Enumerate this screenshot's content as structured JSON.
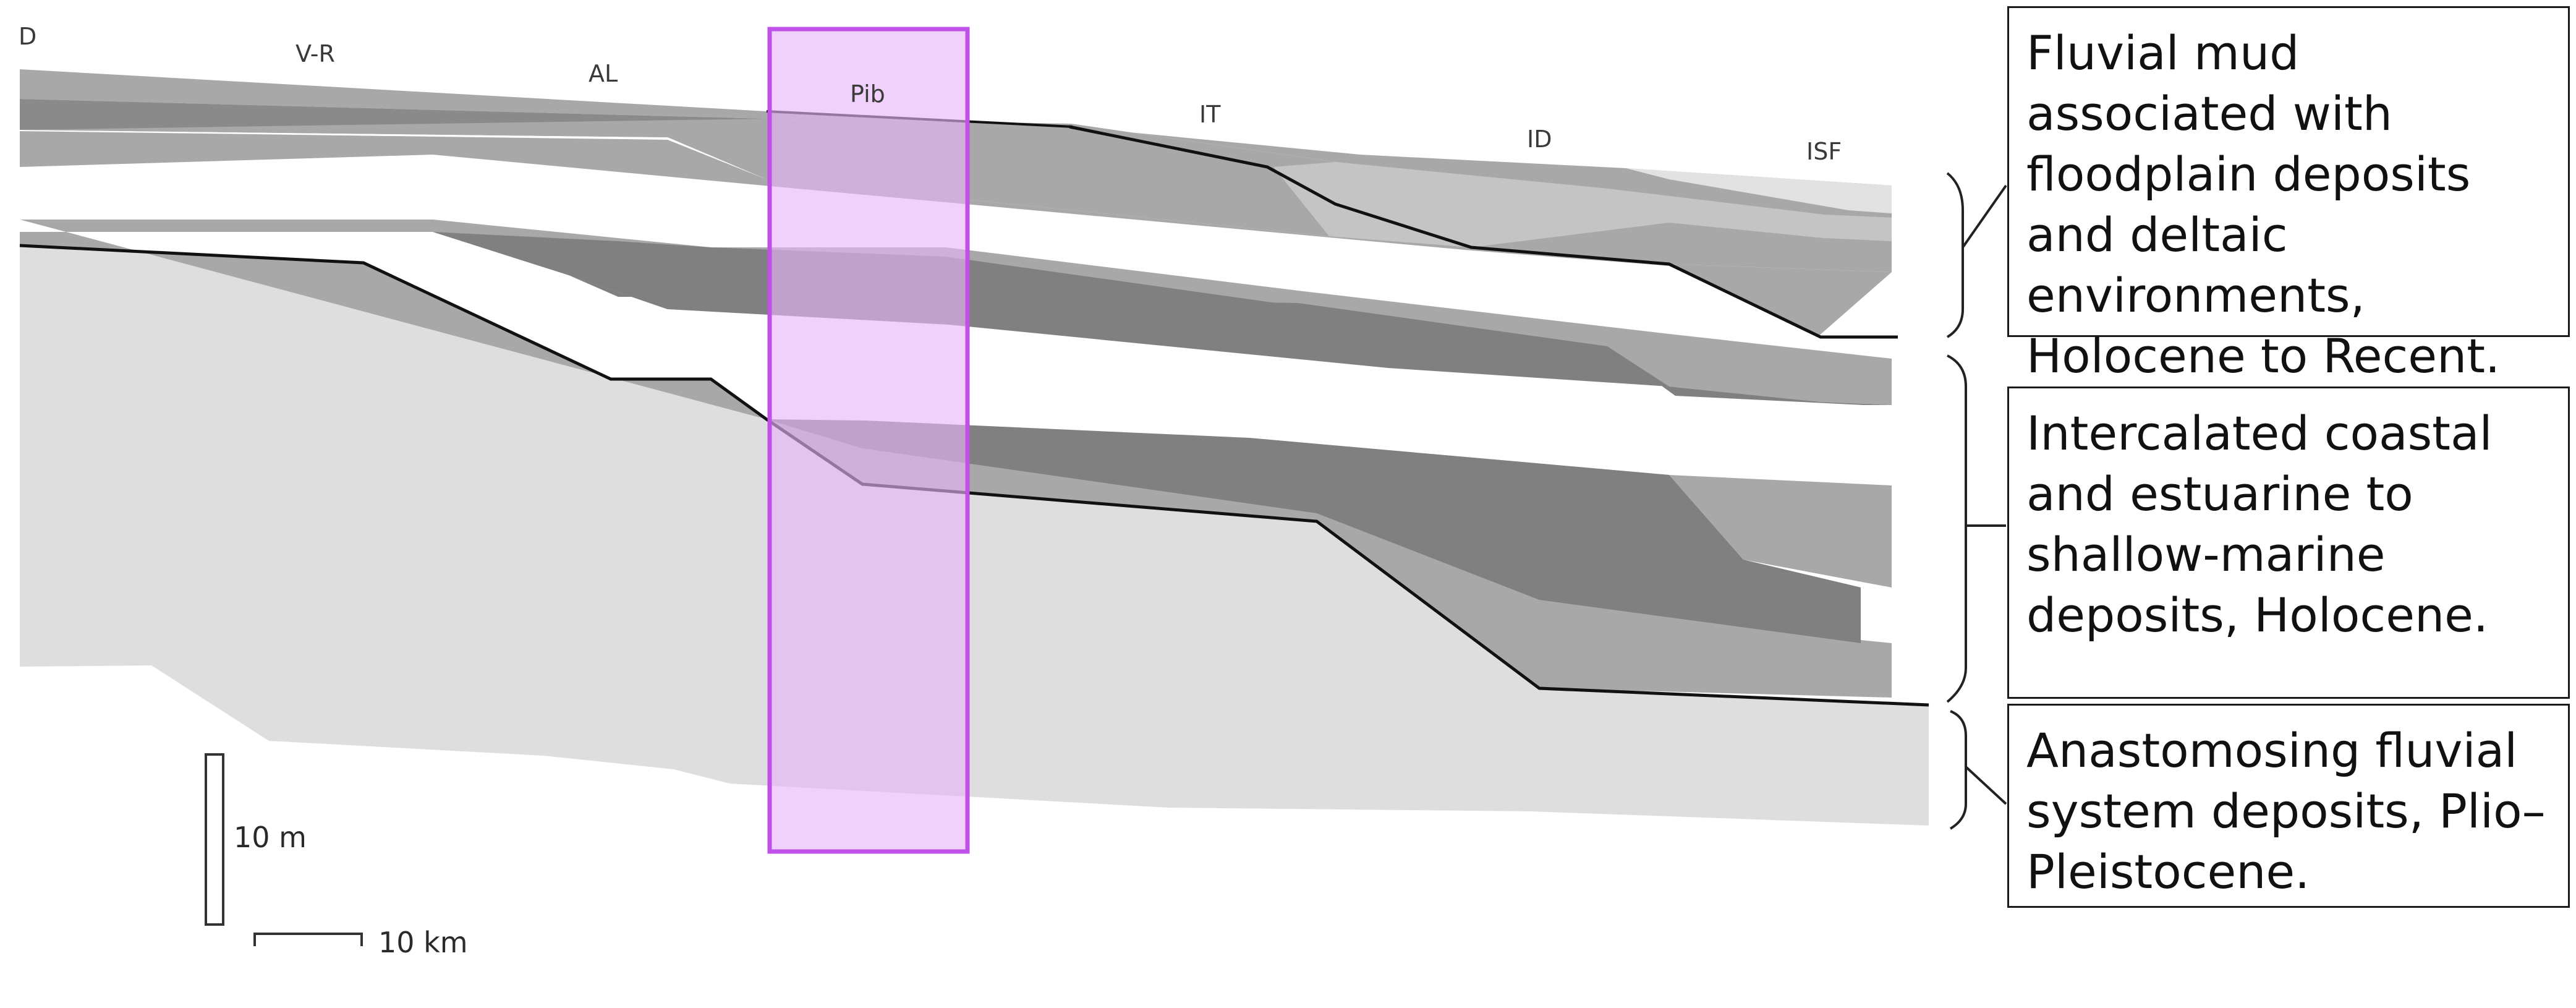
{
  "sites": [
    "D",
    "V-R",
    "AL",
    "Pib",
    "IT",
    "ID",
    "ISF"
  ],
  "scale": {
    "vertical": "10 m",
    "horizontal": "10 km"
  },
  "legend": [
    {
      "text": "Fluvial mud associated with floodplain deposits and deltaic environments, Holocene to Recent."
    },
    {
      "text": "Intercalated coastal and estuarine to shallow-marine deposits, Holocene."
    },
    {
      "text": "Anastomosing fluvial system deposits, Plio–Pleistocene."
    }
  ],
  "colors": {
    "highlight": "#c050e8",
    "highlight_fill": "#e6b4f8",
    "light_unit": "#dedede",
    "mid_unit": "#a8a8a8",
    "dark_unit": "#808080"
  }
}
